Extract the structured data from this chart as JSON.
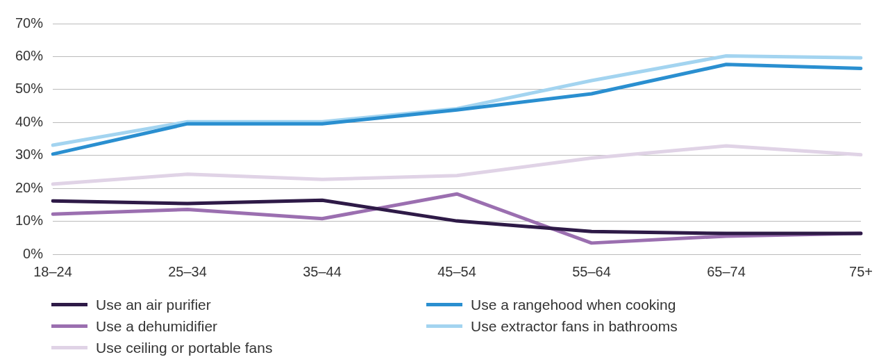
{
  "chart_data": {
    "type": "line",
    "categories": [
      "18–24",
      "25–34",
      "35–44",
      "45–54",
      "55–64",
      "65–74",
      "75+"
    ],
    "series": [
      {
        "name": "Use an air purifier",
        "color": "#2e1a47",
        "values": [
          16.2,
          15.4,
          16.4,
          10.1,
          6.9,
          6.3,
          6.3
        ]
      },
      {
        "name": "Use a dehumidifier",
        "color": "#9b6fb0",
        "values": [
          12.2,
          13.6,
          10.8,
          18.3,
          3.4,
          5.5,
          6.3
        ]
      },
      {
        "name": "Use ceiling or portable fans",
        "color": "#e0d3e6",
        "values": [
          21.3,
          24.3,
          22.7,
          23.9,
          29.2,
          32.9,
          30.2
        ]
      },
      {
        "name": "Use a rangehood when cooking",
        "color": "#2a8fd0",
        "values": [
          30.4,
          39.6,
          39.6,
          43.8,
          48.7,
          57.6,
          56.4
        ]
      },
      {
        "name": "Use extractor fans in bathrooms",
        "color": "#a3d4f0",
        "values": [
          33.1,
          40.2,
          40.2,
          44.2,
          52.7,
          60.2,
          59.6
        ]
      }
    ],
    "ylim": [
      0,
      70
    ],
    "yticks": [
      {
        "value": 0,
        "label": "0%"
      },
      {
        "value": 10,
        "label": "10%"
      },
      {
        "value": 20,
        "label": "20%"
      },
      {
        "value": 30,
        "label": "30%"
      },
      {
        "value": 40,
        "label": "40%"
      },
      {
        "value": 50,
        "label": "50%"
      },
      {
        "value": 60,
        "label": "60%"
      },
      {
        "value": 70,
        "label": "70%"
      }
    ],
    "grid": "y",
    "legend": "bottom",
    "marker": "none",
    "line_style": "solid"
  }
}
